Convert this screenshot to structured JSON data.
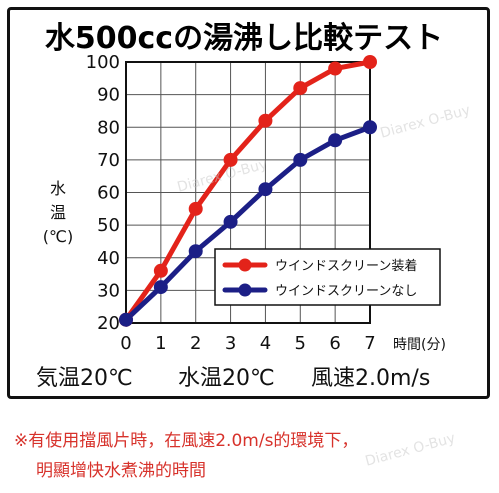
{
  "chart_data": {
    "type": "line",
    "title": "水500ccの湯沸し比較テスト",
    "ylabel_lines": [
      "水",
      "温",
      "(℃)"
    ],
    "xlabel": "時間(分)",
    "x": [
      0,
      1,
      2,
      3,
      4,
      5,
      6,
      7
    ],
    "xlim": [
      0,
      7
    ],
    "ylim": [
      20,
      100
    ],
    "yticks": [
      20,
      30,
      40,
      50,
      60,
      70,
      80,
      90,
      100
    ],
    "grid": true,
    "legend_position": "bottom-right",
    "series": [
      {
        "name": "ウインドスクリーン装着",
        "color": "#e3231a",
        "values": [
          21,
          36,
          55,
          70,
          82,
          92,
          98,
          100
        ]
      },
      {
        "name": "ウインドスクリーンなし",
        "color": "#1c1f86",
        "values": [
          21,
          31,
          42,
          51,
          61,
          70,
          76,
          80
        ]
      }
    ]
  },
  "conditions": {
    "air_temp": "気温20℃",
    "water_temp": "水温20℃",
    "wind_speed": "風速2.0m/s"
  },
  "footnote": {
    "line1": "※有使用擋風片時，在風速2.0m/s的環境下，",
    "line2": "明顯增快水煮沸的時間"
  },
  "watermark": "Diarex O-Buy"
}
